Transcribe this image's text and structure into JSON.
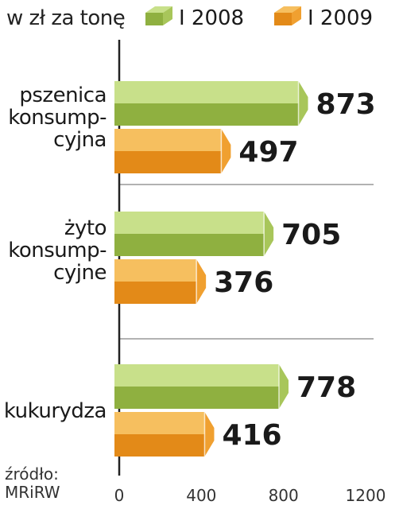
{
  "chart_data": {
    "type": "bar",
    "orientation": "horizontal",
    "unit_label": "w zł za tonę",
    "categories": [
      {
        "lines": [
          "pszenica",
          "konsump-",
          "cyjna"
        ]
      },
      {
        "lines": [
          "żyto",
          "konsump-",
          "cyjne"
        ]
      },
      {
        "lines": [
          "kukurydza"
        ]
      }
    ],
    "series": [
      {
        "name": "I 2008",
        "values": [
          873,
          705,
          778
        ],
        "color": "#b5d36b"
      },
      {
        "name": "I 2009",
        "values": [
          497,
          376,
          416
        ],
        "color": "#f0a030"
      }
    ],
    "xlim": [
      0,
      1200
    ],
    "xticks": [
      "0",
      "400",
      "800",
      "1200"
    ],
    "source_label": "źródło:",
    "source_name": "MRiRW",
    "legend_position": "top",
    "grid": false
  }
}
